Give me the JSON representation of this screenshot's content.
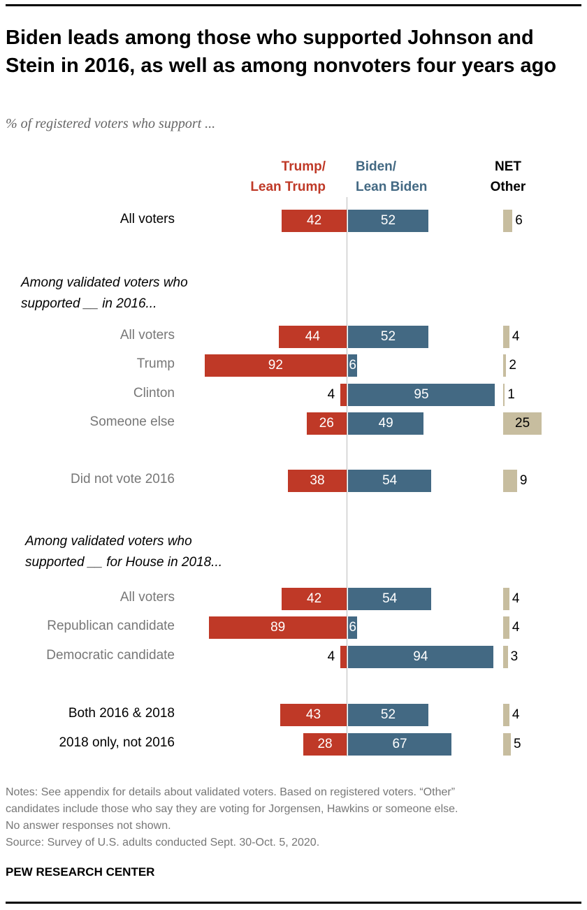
{
  "chart_data": {
    "type": "bar",
    "title": "Biden leads among those who supported Johnson and Stein in 2016, as well as among nonvoters four years ago",
    "subtitle": "% of registered voters who support ...",
    "series": [
      {
        "name": "Trump/ Lean Trump",
        "color": "#bf3927"
      },
      {
        "name": "Biden/ Lean Biden",
        "color": "#436983"
      },
      {
        "name": "NET Other",
        "color": "#c7bd9f"
      }
    ],
    "sections": [
      {
        "heading": "",
        "rows": [
          {
            "label": "All voters",
            "trump": 42,
            "biden": 52,
            "other": 6,
            "gray": false
          }
        ]
      },
      {
        "heading": "Among validated voters who supported __ in 2016...",
        "rows": [
          {
            "label": "All voters",
            "trump": 44,
            "biden": 52,
            "other": 4,
            "gray": true
          },
          {
            "label": "Trump",
            "trump": 92,
            "biden": 6,
            "other": 2,
            "gray": true
          },
          {
            "label": "Clinton",
            "trump": 4,
            "biden": 95,
            "other": 1,
            "gray": true
          },
          {
            "label": "Someone else",
            "trump": 26,
            "biden": 49,
            "other": 25,
            "gray": true
          },
          {
            "label": "Did not vote 2016",
            "trump": 38,
            "biden": 54,
            "other": 9,
            "gray": true
          }
        ]
      },
      {
        "heading": "Among validated voters who supported __ for House in 2018...",
        "rows": [
          {
            "label": "All voters",
            "trump": 42,
            "biden": 54,
            "other": 4,
            "gray": true
          },
          {
            "label": "Republican candidate",
            "trump": 89,
            "biden": 6,
            "other": 4,
            "gray": true
          },
          {
            "label": "Democratic candidate",
            "trump": 4,
            "biden": 94,
            "other": 3,
            "gray": true
          },
          {
            "label": "Both 2016 & 2018",
            "trump": 43,
            "biden": 52,
            "other": 4,
            "gray": false
          },
          {
            "label": "2018 only, not 2016",
            "trump": 28,
            "biden": 67,
            "other": 5,
            "gray": false
          }
        ]
      }
    ]
  },
  "headers": {
    "trump_line1": "Trump/",
    "trump_line2": "Lean Trump",
    "biden_line1": "Biden/",
    "biden_line2": "Lean Biden",
    "other_line1": "NET",
    "other_line2": "Other"
  },
  "section_headings": {
    "s2016_line1": "Among validated voters who",
    "s2016_line2": "supported __ in 2016...",
    "s2018_line1": "Among validated voters who",
    "s2018_line2": "supported __ for House in 2018..."
  },
  "notes": {
    "line1": "Notes: See appendix for details about validated voters. Based on registered voters. “Other”",
    "line2": "candidates include those who say they are voting for Jorgensen, Hawkins or someone else.",
    "line3": "No answer responses not shown.",
    "source": "Source: Survey of U.S. adults conducted Sept. 30-Oct. 5, 2020."
  },
  "branding": "PEW RESEARCH CENTER"
}
